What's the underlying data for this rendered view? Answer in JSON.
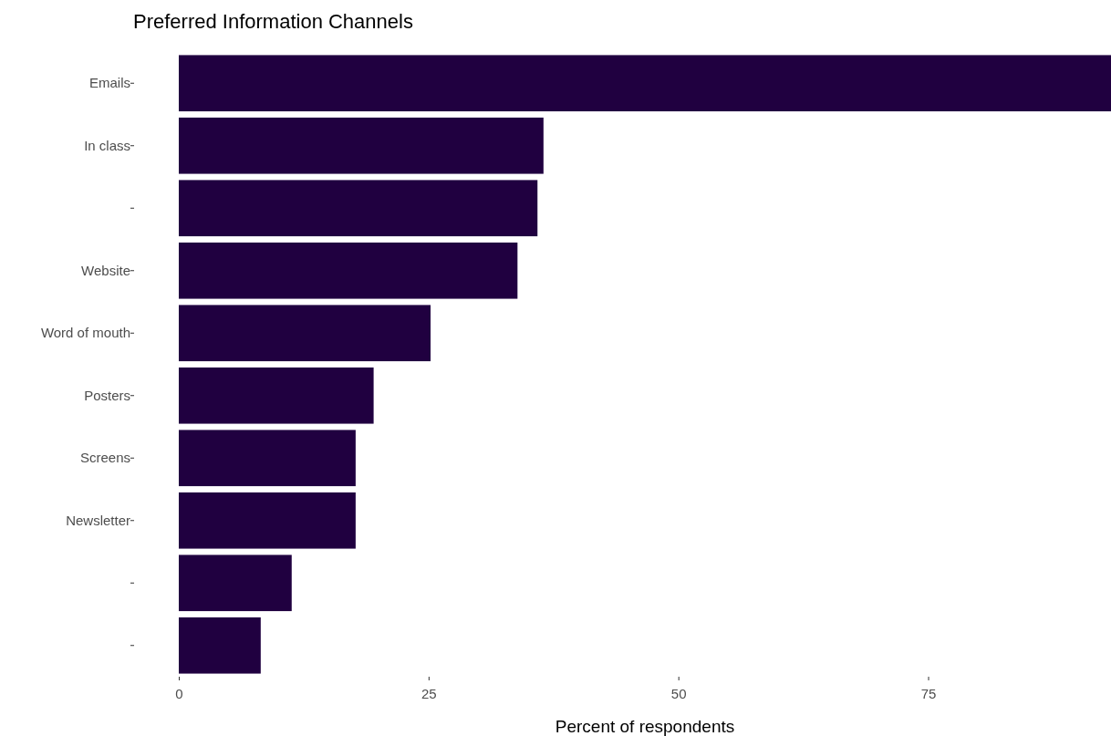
{
  "chart_data": {
    "type": "bar",
    "orientation": "horizontal",
    "title": "Preferred Information Channels",
    "xlabel": "Percent of respondents",
    "categories": [
      "Emails",
      "In class",
      null,
      "Website",
      "Word of mouth",
      "Posters",
      "Screens",
      "Newsletter",
      null,
      null
    ],
    "values": [
      93.3,
      36.5,
      35.9,
      33.9,
      25.2,
      19.5,
      17.7,
      17.7,
      11.3,
      8.2
    ],
    "color": "#200040",
    "xlim": [
      0,
      93.3
    ],
    "xticks": [
      0,
      25,
      50,
      75
    ],
    "grid": false
  }
}
